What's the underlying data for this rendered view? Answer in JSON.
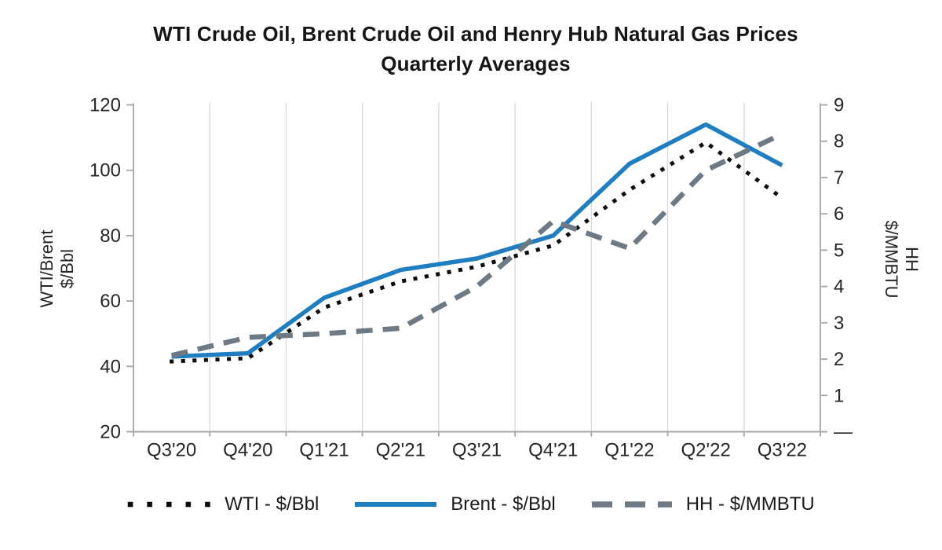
{
  "title": "WTI Crude Oil, Brent Crude Oil and Henry Hub Natural Gas Prices",
  "subtitle": "Quarterly Averages",
  "colors": {
    "wti": "#0d0d0d",
    "brent": "#1f7ec0",
    "hh": "#6d7a85",
    "axis_line": "#a6a6a6",
    "gridline": "#d9d9d9",
    "text": "#262626"
  },
  "axes": {
    "left_title_line1": "WTI/Brent",
    "left_title_line2": "$/Bbl",
    "right_title_line1": "HH",
    "right_title_line2": "$/MMBTU",
    "left_ticks": [
      120,
      100,
      80,
      60,
      40,
      20
    ],
    "right_ticks": [
      {
        "label": "9",
        "value": 9
      },
      {
        "label": "8",
        "value": 8
      },
      {
        "label": "7",
        "value": 7
      },
      {
        "label": "6",
        "value": 6
      },
      {
        "label": "5",
        "value": 5
      },
      {
        "label": "4",
        "value": 4
      },
      {
        "label": "3",
        "value": 3
      },
      {
        "label": "2",
        "value": 2
      },
      {
        "label": "1",
        "value": 1
      },
      {
        "label": "—",
        "value": 0
      }
    ]
  },
  "legend": [
    {
      "label": "WTI - $/Bbl",
      "style": "dotted",
      "color": "#0d0d0d"
    },
    {
      "label": "Brent - $/Bbl",
      "style": "solid",
      "color": "#1f7ec0"
    },
    {
      "label": "HH - $/MMBTU",
      "style": "dashed",
      "color": "#6d7a85"
    }
  ],
  "chart_data": {
    "type": "line",
    "title": "WTI Crude Oil, Brent Crude Oil and Henry Hub Natural Gas Prices Quarterly Averages",
    "categories": [
      "Q3'20",
      "Q4'20",
      "Q1'21",
      "Q2'21",
      "Q3'21",
      "Q4'21",
      "Q1'22",
      "Q2'22",
      "Q3'22"
    ],
    "series": [
      {
        "name": "WTI - $/Bbl",
        "axis": "left",
        "line_style": "dotted",
        "color": "#0d0d0d",
        "values": [
          41.5,
          42.5,
          58,
          66,
          70.5,
          77,
          94,
          108.5,
          91.5
        ]
      },
      {
        "name": "Brent - $/Bbl",
        "axis": "left",
        "line_style": "solid",
        "color": "#1f7ec0",
        "values": [
          43,
          44,
          61,
          69.5,
          73,
          80,
          102,
          114,
          101.5
        ]
      },
      {
        "name": "HH - $/MMBTU",
        "axis": "right",
        "line_style": "dashed",
        "color": "#6d7a85",
        "values": [
          2.1,
          2.6,
          2.7,
          2.85,
          4.0,
          5.8,
          5.05,
          7.2,
          8.2
        ]
      }
    ],
    "ylabel_left": "WTI/Brent $/Bbl",
    "ylabel_right": "HH $/MMBTU",
    "ylim_left": [
      20,
      120
    ],
    "ylim_right": [
      0,
      9
    ],
    "grid": "vertical-only",
    "legend_position": "bottom"
  }
}
